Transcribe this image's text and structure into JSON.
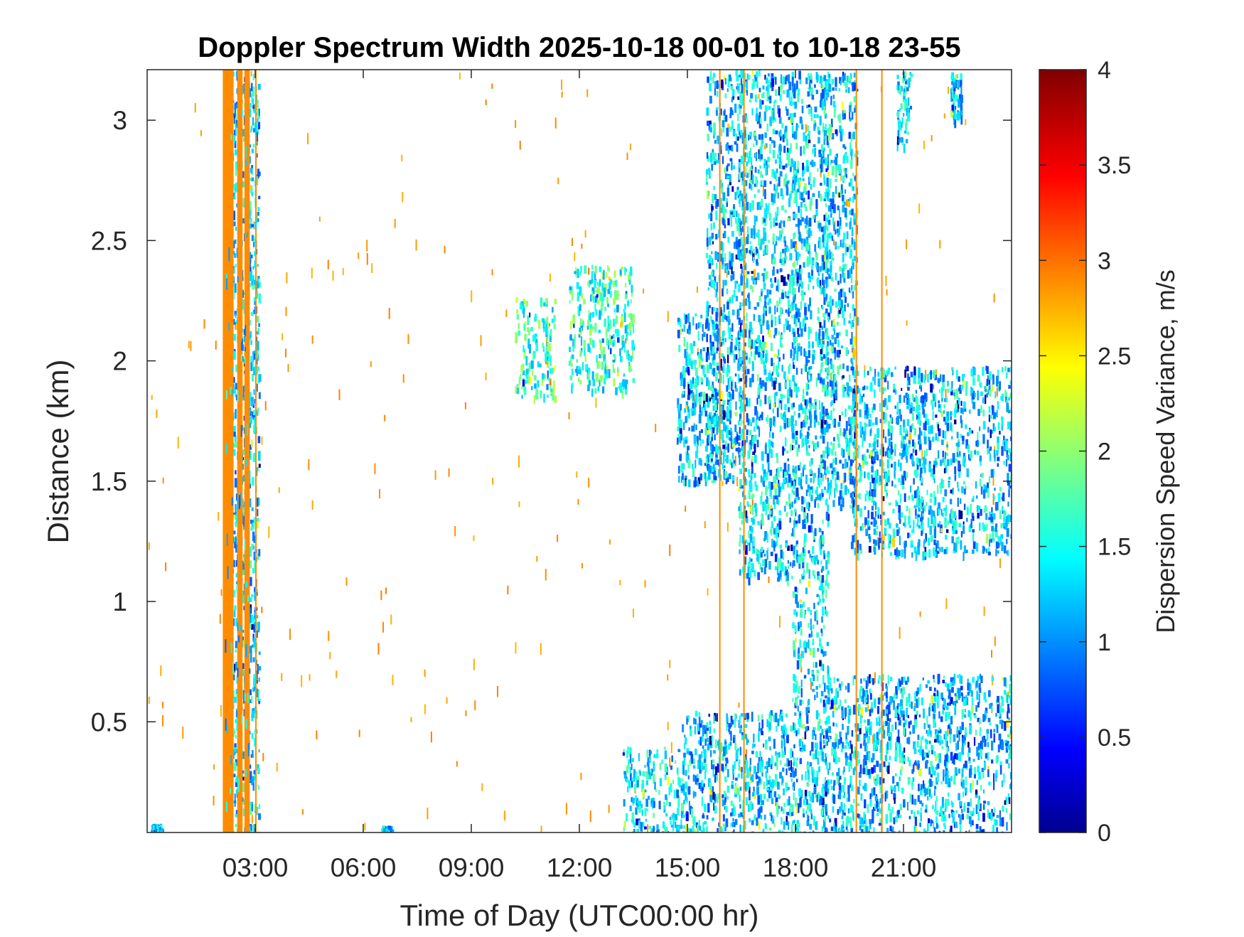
{
  "chart_data": {
    "type": "heatmap",
    "title": "Doppler Spectrum Width 2025-10-18 00-01 to 10-18 23-55",
    "xlabel": "Time of Day (UTC00:00 hr)",
    "ylabel": "Distance (km)",
    "colorbar_label": "Dispersion Speed Variance, m/s",
    "xlim": [
      0,
      24
    ],
    "ylim": [
      0.04,
      3.21
    ],
    "clim": [
      0,
      4
    ],
    "colormap": "jet",
    "grid": false,
    "legend": "colorbar-right",
    "x_ticks": [
      {
        "value": 3,
        "label": "03:00"
      },
      {
        "value": 6,
        "label": "06:00"
      },
      {
        "value": 9,
        "label": "09:00"
      },
      {
        "value": 12,
        "label": "12:00"
      },
      {
        "value": 15,
        "label": "15:00"
      },
      {
        "value": 18,
        "label": "18:00"
      },
      {
        "value": 21,
        "label": "21:00"
      }
    ],
    "y_ticks": [
      {
        "value": 0.5,
        "label": "0.5"
      },
      {
        "value": 1,
        "label": "1"
      },
      {
        "value": 1.5,
        "label": "1.5"
      },
      {
        "value": 2,
        "label": "2"
      },
      {
        "value": 2.5,
        "label": "2.5"
      },
      {
        "value": 3,
        "label": "3"
      }
    ],
    "color_ticks": [
      {
        "value": 0,
        "label": "0"
      },
      {
        "value": 0.5,
        "label": "0.5"
      },
      {
        "value": 1,
        "label": "1"
      },
      {
        "value": 1.5,
        "label": "1.5"
      },
      {
        "value": 2,
        "label": "2"
      },
      {
        "value": 2.5,
        "label": "2.5"
      },
      {
        "value": 3,
        "label": "3"
      },
      {
        "value": 3.5,
        "label": "3.5"
      },
      {
        "value": 4,
        "label": "4"
      }
    ],
    "vertical_streaks": [
      {
        "x0": 2.1,
        "x1": 2.4,
        "y0": 0.04,
        "y1": 3.21,
        "value": 2.95
      },
      {
        "x0": 2.5,
        "x1": 2.65,
        "y0": 0.04,
        "y1": 3.21,
        "value": 2.95
      },
      {
        "x0": 2.7,
        "x1": 2.85,
        "y0": 0.04,
        "y1": 3.21,
        "value": 2.95
      },
      {
        "x0": 3.0,
        "x1": 3.04,
        "y0": 0.04,
        "y1": 3.21,
        "value": 2.95
      },
      {
        "x0": 15.88,
        "x1": 15.92,
        "y0": 0.04,
        "y1": 3.21,
        "value": 2.95
      },
      {
        "x0": 16.55,
        "x1": 16.59,
        "y0": 0.04,
        "y1": 3.21,
        "value": 2.95
      },
      {
        "x0": 19.67,
        "x1": 19.71,
        "y0": 0.04,
        "y1": 3.21,
        "value": 2.95
      },
      {
        "x0": 20.38,
        "x1": 20.42,
        "y0": 0.04,
        "y1": 3.21,
        "value": 2.95
      }
    ],
    "echo_regions": [
      {
        "x0": 2.1,
        "x1": 3.1,
        "y0": 0.04,
        "y1": 3.21,
        "value": 1.3
      },
      {
        "x0": 10.2,
        "x1": 11.3,
        "y0": 1.85,
        "y1": 2.27,
        "value": 1.7
      },
      {
        "x0": 11.7,
        "x1": 13.5,
        "y0": 1.88,
        "y1": 2.4,
        "value": 1.65
      },
      {
        "x0": 14.7,
        "x1": 16.2,
        "y0": 1.5,
        "y1": 2.2,
        "value": 1.3
      },
      {
        "x0": 15.5,
        "x1": 16.6,
        "y0": 1.5,
        "y1": 3.21,
        "value": 1.3
      },
      {
        "x0": 16.4,
        "x1": 18.0,
        "y0": 1.1,
        "y1": 3.21,
        "value": 1.35
      },
      {
        "x0": 17.9,
        "x1": 18.9,
        "y0": 0.04,
        "y1": 3.21,
        "value": 1.35
      },
      {
        "x0": 18.7,
        "x1": 19.7,
        "y0": 1.4,
        "y1": 3.21,
        "value": 1.35
      },
      {
        "x0": 19.5,
        "x1": 24.0,
        "y0": 1.2,
        "y1": 1.98,
        "value": 1.3
      },
      {
        "x0": 13.2,
        "x1": 14.9,
        "y0": 0.04,
        "y1": 0.4,
        "value": 1.4
      },
      {
        "x0": 14.8,
        "x1": 17.9,
        "y0": 0.04,
        "y1": 0.55,
        "value": 1.3
      },
      {
        "x0": 18.8,
        "x1": 24.0,
        "y0": 0.04,
        "y1": 0.7,
        "value": 1.25
      },
      {
        "x0": 20.8,
        "x1": 21.2,
        "y0": 2.9,
        "y1": 3.21,
        "value": 1.4
      },
      {
        "x0": 22.3,
        "x1": 22.6,
        "y0": 3.0,
        "y1": 3.2,
        "value": 1.3
      },
      {
        "x0": 0.1,
        "x1": 0.4,
        "y0": 0.04,
        "y1": 0.08,
        "value": 1.3
      },
      {
        "x0": 6.5,
        "x1": 6.8,
        "y0": 0.04,
        "y1": 0.07,
        "value": 1.3
      }
    ],
    "scattered_noise": {
      "value": 2.9,
      "x_range": [
        0,
        24
      ],
      "y_range": [
        0.04,
        3.21
      ]
    }
  }
}
